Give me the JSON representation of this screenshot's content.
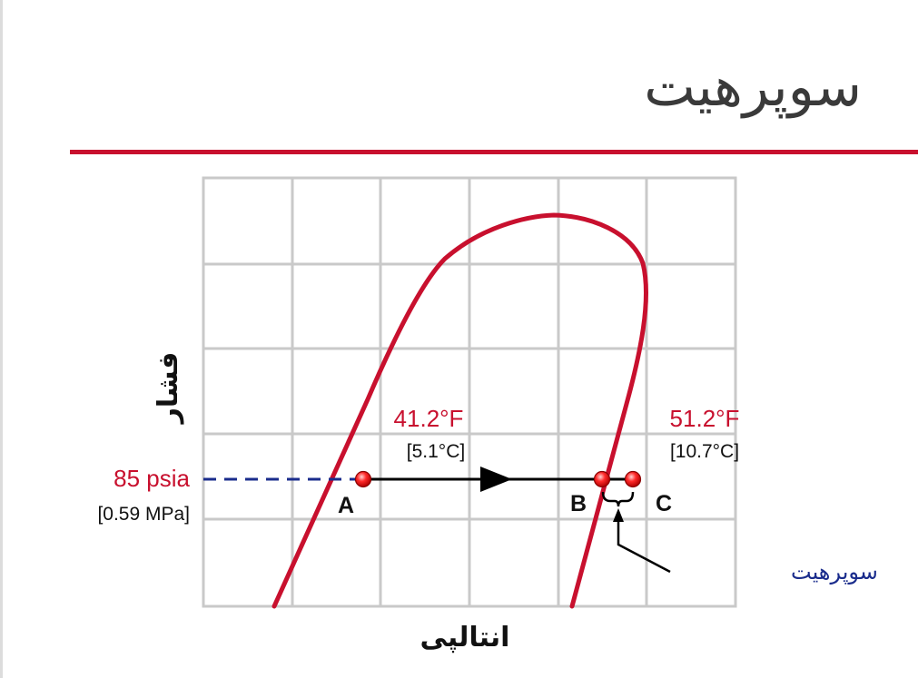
{
  "title": "سوپرهیت",
  "axes": {
    "y_label": "فشار",
    "x_label": "انتالپی"
  },
  "pressure": {
    "psia_label": "85 psia",
    "mpa_label": "[0.59 MPa]"
  },
  "temperatures": {
    "saturation_f": "41.2°F",
    "saturation_c": "[5.1°C]",
    "superheated_f": "51.2°F",
    "superheated_c": "[10.7°C]"
  },
  "points": {
    "a": "A",
    "b": "B",
    "c": "C"
  },
  "annotation": "سوپرهیت",
  "colors": {
    "accent_red": "#c8102e",
    "title_gray": "#3a3a3a",
    "grid_gray": "#c9c9c9",
    "annotation_blue": "#1a2c8c",
    "pressure_line_blue": "#1a2c8c",
    "process_line": "#000000"
  }
}
